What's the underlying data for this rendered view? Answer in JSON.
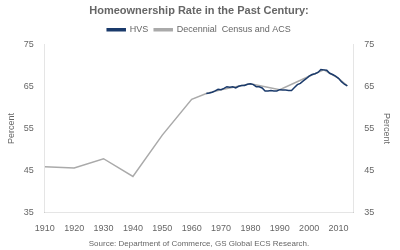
{
  "chart_data": {
    "type": "line",
    "title": "Homeownership Rate in the Past Century:",
    "source": "Source: Department of Commerce, GS Global ECS Research.",
    "ylabel": "Percent",
    "y2label": "Percent",
    "xlim": [
      1910,
      2015
    ],
    "xticks": [
      1910,
      1920,
      1930,
      1940,
      1950,
      1960,
      1970,
      1980,
      1990,
      2000,
      2010
    ],
    "ylim": [
      35,
      75
    ],
    "yticks": [
      35,
      45,
      55,
      65,
      75
    ],
    "y2lim": [
      35,
      75
    ],
    "y2ticks": [
      35,
      45,
      55,
      65,
      75
    ],
    "grid": false,
    "legend": "top",
    "series": [
      {
        "name": "HVS",
        "color": "#1a3a6b",
        "x": [
          1965,
          1966,
          1967,
          1968,
          1969,
          1970,
          1971,
          1972,
          1973,
          1974,
          1975,
          1976,
          1977,
          1978,
          1979,
          1980,
          1981,
          1982,
          1983,
          1984,
          1985,
          1986,
          1987,
          1988,
          1989,
          1990,
          1991,
          1992,
          1993,
          1994,
          1995,
          1996,
          1997,
          1998,
          1999,
          2000,
          2001,
          2002,
          2003,
          2004,
          2005,
          2006,
          2007,
          2008,
          2009,
          2010,
          2011,
          2012,
          2013
        ],
        "values": [
          63.3,
          63.4,
          63.6,
          63.9,
          64.3,
          64.2,
          64.5,
          64.9,
          64.8,
          64.9,
          64.6,
          65.0,
          65.2,
          65.2,
          65.5,
          65.6,
          65.4,
          64.9,
          64.9,
          64.6,
          63.9,
          63.9,
          64.0,
          63.9,
          63.9,
          64.2,
          64.1,
          64.1,
          64.0,
          64.0,
          64.7,
          65.4,
          65.7,
          66.3,
          66.8,
          67.4,
          67.8,
          68.0,
          68.3,
          69.0,
          68.9,
          68.8,
          68.1,
          67.8,
          67.4,
          66.9,
          66.1,
          65.5,
          65.1
        ]
      },
      {
        "name": "Decennial  Census and ACS",
        "color": "#aaaaaa",
        "x": [
          1910,
          1920,
          1930,
          1940,
          1950,
          1960,
          1965,
          1970,
          1980,
          1990,
          2000,
          2005,
          2010,
          2013
        ],
        "values": [
          45.9,
          45.6,
          47.8,
          43.6,
          53.4,
          61.9,
          63.3,
          64.2,
          65.6,
          64.2,
          67.4,
          68.9,
          66.9,
          65.1
        ]
      }
    ]
  }
}
